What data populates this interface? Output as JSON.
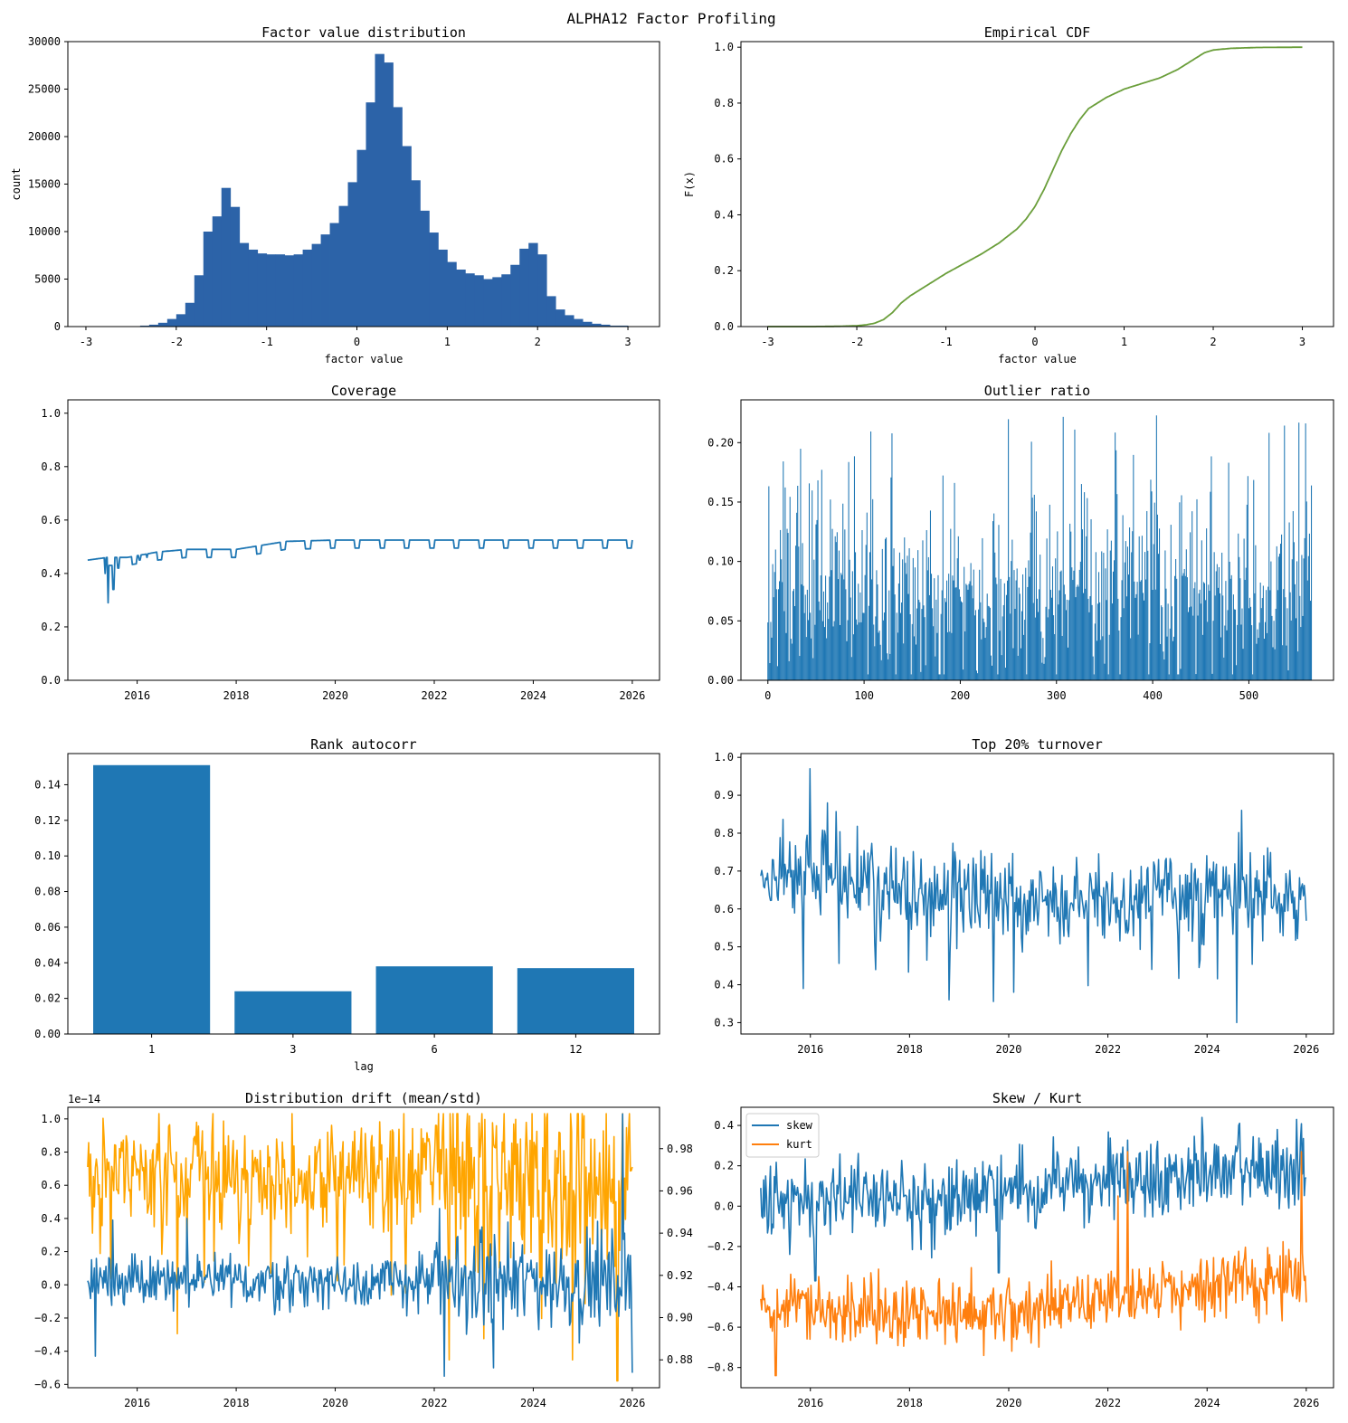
{
  "figure": {
    "title": "ALPHA12 Factor Profiling"
  },
  "colors": {
    "hist": "#2c63a8",
    "cdf": "#6a9e3a",
    "blue": "#1f77b4",
    "orange": "#ff7f0e",
    "amber": "#ffa500"
  },
  "chart_data": [
    {
      "id": "hist",
      "type": "bar",
      "title": "Factor value distribution",
      "xlabel": "factor value",
      "ylabel": "count",
      "xlim": [
        -3.2,
        3.35
      ],
      "ylim": [
        0,
        30000
      ],
      "xticks": [
        -3,
        -2,
        -1,
        0,
        1,
        2,
        3
      ],
      "yticks": [
        0,
        5000,
        10000,
        15000,
        20000,
        25000,
        30000
      ],
      "bin_start": -2.4,
      "bin_width": 0.1,
      "values": [
        100,
        200,
        400,
        800,
        1300,
        2500,
        5400,
        10000,
        11600,
        14600,
        12600,
        8800,
        8100,
        7700,
        7600,
        7600,
        7500,
        7600,
        8100,
        8700,
        9700,
        10900,
        12700,
        15200,
        18600,
        23600,
        28700,
        27800,
        23100,
        19000,
        15400,
        12200,
        9900,
        8100,
        6800,
        6000,
        5600,
        5400,
        5000,
        5200,
        5500,
        6500,
        8200,
        8800,
        7600,
        3200,
        1800,
        1200,
        800,
        500,
        300,
        200,
        100,
        100
      ]
    },
    {
      "id": "cdf",
      "type": "line",
      "title": "Empirical CDF",
      "xlabel": "factor value",
      "ylabel": "F(x)",
      "xlim": [
        -3.3,
        3.35
      ],
      "ylim": [
        0,
        1.02
      ],
      "xticks": [
        -3,
        -2,
        -1,
        0,
        1,
        2,
        3
      ],
      "yticks": [
        0.0,
        0.2,
        0.4,
        0.6,
        0.8,
        1.0
      ],
      "x": [
        -3.0,
        -2.5,
        -2.2,
        -2.0,
        -1.9,
        -1.8,
        -1.7,
        -1.6,
        -1.5,
        -1.4,
        -1.2,
        -1.0,
        -0.8,
        -0.6,
        -0.4,
        -0.2,
        -0.1,
        0.0,
        0.1,
        0.2,
        0.3,
        0.4,
        0.5,
        0.6,
        0.8,
        1.0,
        1.2,
        1.4,
        1.6,
        1.7,
        1.8,
        1.9,
        2.0,
        2.2,
        2.5,
        3.0
      ],
      "y": [
        0.0,
        0.0,
        0.001,
        0.003,
        0.006,
        0.012,
        0.025,
        0.05,
        0.085,
        0.11,
        0.15,
        0.19,
        0.225,
        0.26,
        0.3,
        0.35,
        0.385,
        0.43,
        0.49,
        0.56,
        0.63,
        0.69,
        0.74,
        0.78,
        0.82,
        0.85,
        0.87,
        0.89,
        0.92,
        0.94,
        0.96,
        0.98,
        0.99,
        0.996,
        0.999,
        1.0
      ]
    },
    {
      "id": "coverage",
      "type": "line",
      "title": "Coverage",
      "xlim": [
        2014.6,
        2026.55
      ],
      "ylim": [
        0,
        1.05
      ],
      "xticks": [
        2016,
        2018,
        2020,
        2022,
        2024,
        2026
      ],
      "yticks": [
        0.0,
        0.2,
        0.4,
        0.6,
        0.8,
        1.0
      ],
      "x_start": 2015.0,
      "x_end": 2026.0,
      "base_points": [
        [
          2015.0,
          0.45
        ],
        [
          2015.4,
          0.46
        ],
        [
          2015.8,
          0.46
        ],
        [
          2016.4,
          0.48
        ],
        [
          2017.0,
          0.49
        ],
        [
          2018.0,
          0.49
        ],
        [
          2019.0,
          0.52
        ],
        [
          2020.0,
          0.525
        ],
        [
          2026.0,
          0.525
        ]
      ],
      "dips": [
        [
          2015.35,
          0.4
        ],
        [
          2015.42,
          0.29
        ],
        [
          2015.52,
          0.34
        ],
        [
          2015.62,
          0.42
        ],
        [
          2016.05,
          0.45
        ],
        [
          2016.2,
          0.46
        ]
      ],
      "dip_period": 0.5,
      "dip_depth": 0.03
    },
    {
      "id": "outlier",
      "type": "bar",
      "title": "Outlier ratio",
      "xlim": [
        -28,
        588
      ],
      "ylim": [
        0,
        0.236
      ],
      "xticks": [
        0,
        100,
        200,
        300,
        400,
        500
      ],
      "yticks": [
        0.0,
        0.05,
        0.1,
        0.15,
        0.2
      ],
      "n": 566,
      "mean": 0.075,
      "spread": 0.035,
      "spike_max": 0.226,
      "seed": 12
    },
    {
      "id": "autocorr",
      "type": "bar",
      "title": "Rank autocorr",
      "xlabel": "lag",
      "ylim": [
        0,
        0.1575
      ],
      "yticks": [
        0.0,
        0.02,
        0.04,
        0.06,
        0.08,
        0.1,
        0.12,
        0.14
      ],
      "categories": [
        "1",
        "3",
        "6",
        "12"
      ],
      "values": [
        0.151,
        0.024,
        0.038,
        0.037
      ]
    },
    {
      "id": "turnover",
      "type": "line",
      "title": "Top 20% turnover",
      "xlim": [
        2014.6,
        2026.55
      ],
      "ylim": [
        0.27,
        1.01
      ],
      "xticks": [
        2016,
        2018,
        2020,
        2022,
        2024,
        2026
      ],
      "yticks": [
        0.3,
        0.4,
        0.5,
        0.6,
        0.7,
        0.8,
        0.9,
        1.0
      ],
      "x_start": 2015.0,
      "x_end": 2026.0,
      "n": 566,
      "anchors": [
        [
          2015.0,
          0.66
        ],
        [
          2016.0,
          0.7
        ],
        [
          2017.0,
          0.68
        ],
        [
          2018.0,
          0.64
        ],
        [
          2020.0,
          0.64
        ],
        [
          2022.0,
          0.63
        ],
        [
          2024.0,
          0.64
        ],
        [
          2026.0,
          0.63
        ]
      ],
      "noise": 0.055,
      "extremes": [
        [
          2016.0,
          0.97
        ],
        [
          2015.85,
          0.39
        ],
        [
          2018.8,
          0.36
        ],
        [
          2020.1,
          0.38
        ],
        [
          2024.6,
          0.3
        ],
        [
          2024.7,
          0.86
        ],
        [
          2016.35,
          0.88
        ]
      ],
      "seed": 7
    },
    {
      "id": "drift",
      "type": "line",
      "title": "Distribution drift (mean/std)",
      "offset_label": "1e−14",
      "xlim": [
        2014.6,
        2026.55
      ],
      "ylim": [
        -0.62,
        1.07
      ],
      "ylim_right": [
        0.8668,
        0.9996
      ],
      "xticks": [
        2016,
        2018,
        2020,
        2022,
        2024,
        2026
      ],
      "yticks": [
        -0.6,
        -0.4,
        -0.2,
        0.0,
        0.2,
        0.4,
        0.6,
        0.8,
        1.0
      ],
      "yticks_right": [
        0.88,
        0.9,
        0.92,
        0.94,
        0.96,
        0.98
      ],
      "x_start": 2015.0,
      "x_end": 2026.0,
      "n": 566,
      "series": [
        {
          "key": "mean",
          "axis": "left",
          "color": "blue",
          "base": 0.02,
          "noise": 0.08,
          "spikes": [
            [
              2015.15,
              -0.43
            ],
            [
              2015.5,
              0.39
            ],
            [
              2017.0,
              0.4
            ],
            [
              2022.2,
              -0.55
            ],
            [
              2022.1,
              0.46
            ],
            [
              2023.2,
              -0.5
            ],
            [
              2025.8,
              1.03
            ],
            [
              2026.0,
              -0.53
            ]
          ],
          "seed": 3
        },
        {
          "key": "std",
          "axis": "right",
          "color": "amber",
          "base": 0.968,
          "noise": 0.012,
          "spikes": [
            [
              2015.1,
              0.94
            ],
            [
              2016.5,
              0.93
            ],
            [
              2017.0,
              0.93
            ],
            [
              2022.3,
              0.88
            ],
            [
              2023.0,
              0.89
            ],
            [
              2024.8,
              0.88
            ],
            [
              2025.7,
              0.87
            ]
          ],
          "seed": 5
        }
      ]
    },
    {
      "id": "skewkurt",
      "type": "line",
      "title": "Skew / Kurt",
      "xlim": [
        2014.6,
        2026.55
      ],
      "ylim": [
        -0.9,
        0.49
      ],
      "xticks": [
        2016,
        2018,
        2020,
        2022,
        2024,
        2026
      ],
      "yticks": [
        -0.8,
        -0.6,
        -0.4,
        -0.2,
        0.0,
        0.2,
        0.4
      ],
      "x_start": 2015.0,
      "x_end": 2026.0,
      "n": 566,
      "legend": [
        {
          "name": "skew",
          "color": "blue"
        },
        {
          "name": "kurt",
          "color": "orange"
        }
      ],
      "series": [
        {
          "name": "skew",
          "color": "blue",
          "anchors": [
            [
              2015.0,
              0.03
            ],
            [
              2018.0,
              0.05
            ],
            [
              2020.0,
              0.08
            ],
            [
              2022.0,
              0.13
            ],
            [
              2024.0,
              0.16
            ],
            [
              2026.0,
              0.18
            ]
          ],
          "noise": 0.1,
          "spikes": [
            [
              2023.9,
              0.44
            ],
            [
              2025.8,
              0.43
            ],
            [
              2019.8,
              -0.33
            ],
            [
              2016.1,
              -0.37
            ]
          ],
          "seed": 11
        },
        {
          "name": "kurt",
          "color": "orange",
          "anchors": [
            [
              2015.0,
              -0.5
            ],
            [
              2018.0,
              -0.52
            ],
            [
              2020.0,
              -0.52
            ],
            [
              2022.0,
              -0.45
            ],
            [
              2024.0,
              -0.4
            ],
            [
              2026.0,
              -0.35
            ]
          ],
          "noise": 0.08,
          "spikes": [
            [
              2015.3,
              -0.84
            ],
            [
              2022.4,
              0.27
            ],
            [
              2025.9,
              0.27
            ],
            [
              2022.2,
              0.05
            ],
            [
              2019.5,
              -0.74
            ]
          ],
          "seed": 19
        }
      ]
    }
  ]
}
